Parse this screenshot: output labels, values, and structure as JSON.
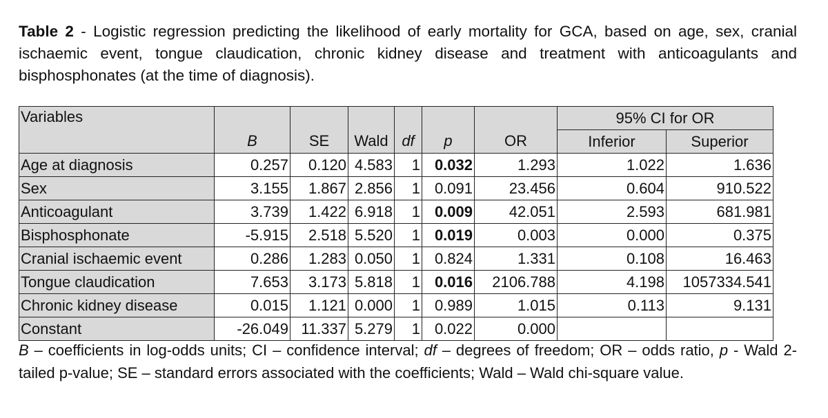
{
  "caption": {
    "label": "Table 2",
    "text": " - Logistic regression predicting the likelihood of early mortality for GCA, based on age, sex, cranial ischaemic event, tongue claudication, chronic kidney disease and treatment with anticoagulants and bisphosphonates (at the time of diagnosis)."
  },
  "table": {
    "variables_header": "Variables",
    "ci_group_header": "95% CI for OR",
    "col_B": "B",
    "col_SE": "SE",
    "col_Wald": "Wald",
    "col_df": "df",
    "col_p": "p",
    "col_OR": "OR",
    "col_inf": "Inferior",
    "col_sup": "Superior",
    "rows": [
      {
        "var": "Age at diagnosis",
        "B": "0.257",
        "SE": "0.120",
        "Wald": "4.583",
        "df": "1",
        "p": "0.032",
        "p_bold": true,
        "OR": "1.293",
        "inf": "1.022",
        "sup": "1.636"
      },
      {
        "var": "Sex",
        "B": "3.155",
        "SE": "1.867",
        "Wald": "2.856",
        "df": "1",
        "p": "0.091",
        "p_bold": false,
        "OR": "23.456",
        "inf": "0.604",
        "sup": "910.522"
      },
      {
        "var": "Anticoagulant",
        "B": "3.739",
        "SE": "1.422",
        "Wald": "6.918",
        "df": "1",
        "p": "0.009",
        "p_bold": true,
        "OR": "42.051",
        "inf": "2.593",
        "sup": "681.981"
      },
      {
        "var": "Bisphosphonate",
        "B": "-5.915",
        "SE": "2.518",
        "Wald": "5.520",
        "df": "1",
        "p": "0.019",
        "p_bold": true,
        "OR": "0.003",
        "inf": "0.000",
        "sup": "0.375"
      },
      {
        "var": "Cranial ischaemic event",
        "B": "0.286",
        "SE": "1.283",
        "Wald": "0.050",
        "df": "1",
        "p": "0.824",
        "p_bold": false,
        "OR": "1.331",
        "inf": "0.108",
        "sup": "16.463"
      },
      {
        "var": "Tongue claudication",
        "B": "7.653",
        "SE": "3.173",
        "Wald": "5.818",
        "df": "1",
        "p": "0.016",
        "p_bold": true,
        "OR": "2106.788",
        "inf": "4.198",
        "sup": "1057334.541"
      },
      {
        "var": "Chronic kidney disease",
        "B": "0.015",
        "SE": "1.121",
        "Wald": "0.000",
        "df": "1",
        "p": "0.989",
        "p_bold": false,
        "OR": "1.015",
        "inf": "0.113",
        "sup": "9.131"
      },
      {
        "var": "Constant",
        "B": "-26.049",
        "SE": "11.337",
        "Wald": "5.279",
        "df": "1",
        "p": "0.022",
        "p_bold": false,
        "OR": "0.000",
        "inf": "",
        "sup": ""
      }
    ]
  },
  "footnote": {
    "B_sym": "B",
    "B_def": " – coefficients in log-odds units; CI – confidence interval; ",
    "df_sym": "df",
    "df_def": " – degrees of freedom; OR – odds ratio, ",
    "p_sym": "p",
    "p_def": " - Wald 2-tailed p-value; SE – standard errors associated with the coefficients; Wald – Wald chi-square value."
  }
}
